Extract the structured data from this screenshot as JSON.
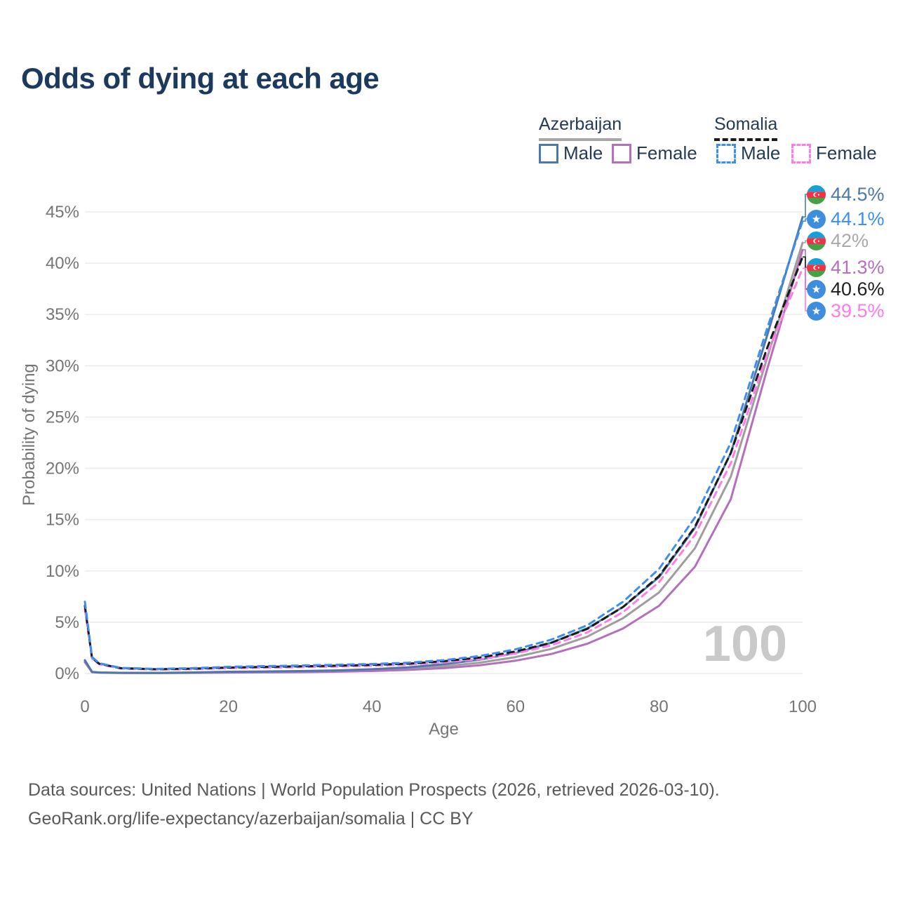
{
  "title": "Odds of dying at each age",
  "legend": {
    "groups": [
      {
        "name": "Azerbaijan",
        "underline": "solid",
        "underline_color": "#a6a6a6",
        "items": [
          {
            "label": "Male",
            "color": "#4b79ad",
            "dashed": false
          },
          {
            "label": "Female",
            "color": "#b470bd",
            "dashed": false
          }
        ]
      },
      {
        "name": "Somalia",
        "underline": "dashed",
        "underline_color": "#1a1a1a",
        "items": [
          {
            "label": "Male",
            "color": "#3d8ef0",
            "dashed": true
          },
          {
            "label": "Female",
            "color": "#ff7be8",
            "dashed": true
          }
        ]
      }
    ]
  },
  "chart_data": {
    "type": "line",
    "title": "Odds of dying at each age",
    "xlabel": "Age",
    "ylabel": "Probability of dying",
    "xlim": [
      0,
      100
    ],
    "ylim_pct": [
      0,
      45
    ],
    "grid": "horizontal",
    "legend_position": "top-right",
    "hover_age_watermark": "100",
    "x_ticks": [
      0,
      20,
      40,
      60,
      80,
      100
    ],
    "y_ticks": [
      "0%",
      "5%",
      "10%",
      "15%",
      "20%",
      "25%",
      "30%",
      "35%",
      "40%",
      "45%"
    ],
    "y_tick_values": [
      0,
      5,
      10,
      15,
      20,
      25,
      30,
      35,
      40,
      45
    ],
    "ages": [
      0,
      1,
      2,
      5,
      10,
      15,
      20,
      25,
      30,
      35,
      40,
      45,
      50,
      55,
      60,
      65,
      70,
      75,
      80,
      85,
      90,
      95,
      100
    ],
    "series": [
      {
        "name": "Azerbaijan Both sexes",
        "country": "Azerbaijan",
        "sex": "Both",
        "style": "solid",
        "color": "#9e9e9e",
        "values_pct": [
          1.2,
          0.15,
          0.09,
          0.06,
          0.05,
          0.08,
          0.13,
          0.15,
          0.18,
          0.23,
          0.33,
          0.47,
          0.7,
          1.05,
          1.6,
          2.4,
          3.6,
          5.4,
          7.9,
          12.2,
          19.2,
          30.6,
          42.0
        ]
      },
      {
        "name": "Azerbaijan Female",
        "country": "Azerbaijan",
        "sex": "Female",
        "style": "solid",
        "color": "#b470bd",
        "values_pct": [
          1.1,
          0.13,
          0.08,
          0.05,
          0.04,
          0.06,
          0.09,
          0.11,
          0.13,
          0.17,
          0.24,
          0.35,
          0.52,
          0.8,
          1.25,
          1.9,
          2.9,
          4.4,
          6.6,
          10.4,
          17.0,
          29.5,
          41.3
        ]
      },
      {
        "name": "Azerbaijan Male",
        "country": "Azerbaijan",
        "sex": "Male",
        "style": "solid",
        "color": "#4b79ad",
        "values_pct": [
          1.3,
          0.16,
          0.1,
          0.07,
          0.06,
          0.1,
          0.17,
          0.2,
          0.24,
          0.3,
          0.42,
          0.6,
          0.9,
          1.35,
          2.0,
          3.0,
          4.4,
          6.5,
          9.4,
          14.2,
          21.5,
          32.8,
          44.5
        ]
      },
      {
        "name": "Somalia Female",
        "country": "Somalia",
        "sex": "Female",
        "style": "dashed",
        "color": "#ff7be8",
        "values_pct": [
          6.3,
          1.45,
          0.9,
          0.48,
          0.38,
          0.42,
          0.52,
          0.57,
          0.62,
          0.68,
          0.75,
          0.86,
          1.08,
          1.4,
          1.95,
          2.75,
          4.0,
          6.0,
          8.9,
          13.5,
          20.5,
          31.0,
          39.5
        ]
      },
      {
        "name": "Somalia Both sexes",
        "country": "Somalia",
        "sex": "Both",
        "style": "dashed",
        "color": "#1a1a1a",
        "values_pct": [
          6.6,
          1.5,
          0.95,
          0.52,
          0.42,
          0.47,
          0.58,
          0.64,
          0.7,
          0.76,
          0.84,
          0.96,
          1.2,
          1.55,
          2.15,
          3.0,
          4.35,
          6.5,
          9.5,
          14.3,
          21.5,
          31.6,
          40.6
        ]
      },
      {
        "name": "Somalia Male",
        "country": "Somalia",
        "sex": "Male",
        "style": "dashed",
        "color": "#3d8ef0",
        "values_pct": [
          7.0,
          1.6,
          1.0,
          0.55,
          0.45,
          0.52,
          0.65,
          0.72,
          0.78,
          0.85,
          0.92,
          1.05,
          1.3,
          1.7,
          2.35,
          3.3,
          4.7,
          7.0,
          10.2,
          15.2,
          22.5,
          33.5,
          44.1
        ]
      }
    ],
    "end_labels": [
      {
        "value": "44.5%",
        "series": "Azerbaijan Male",
        "flag": "azerbaijan-flag",
        "flag_ref": "#flag-az",
        "color": "#4b79ad"
      },
      {
        "value": "44.1%",
        "series": "Somalia Male",
        "flag": "somalia-flag",
        "flag_ref": "#flag-so",
        "color": "#3d8ef0"
      },
      {
        "value": "42%",
        "series": "Azerbaijan Both sexes",
        "flag": "azerbaijan-flag",
        "flag_ref": "#flag-az",
        "color": "#a9a9a9"
      },
      {
        "value": "41.3%",
        "series": "Azerbaijan Female",
        "flag": "azerbaijan-flag",
        "flag_ref": "#flag-az",
        "color": "#b470bd"
      },
      {
        "value": "40.6%",
        "series": "Somalia Both sexes",
        "flag": "somalia-flag",
        "flag_ref": "#flag-so",
        "color": "#1f1f1f"
      },
      {
        "value": "39.5%",
        "series": "Somalia Female",
        "flag": "somalia-flag",
        "flag_ref": "#flag-so",
        "color": "#ff7be8"
      }
    ]
  },
  "footer": {
    "line1": "Data sources: United Nations | World Population Prospects (2026, retrieved 2026-03-10).",
    "line2": "GeoRank.org/life-expectancy/azerbaijan/somalia | CC BY"
  }
}
